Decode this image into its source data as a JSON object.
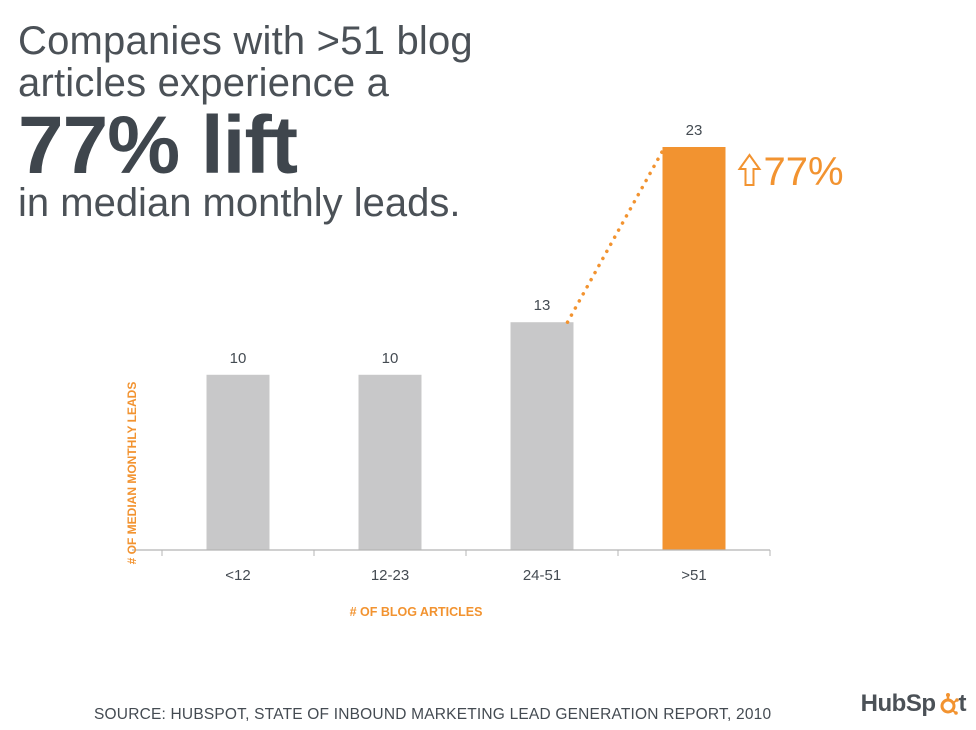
{
  "headline": {
    "line1": "Companies with >51 blog",
    "line2": "articles experience a",
    "big": "77% lift",
    "line4": "in median monthly leads."
  },
  "footer": {
    "source": "SOURCE: HUBSPOT, STATE OF INBOUND MARKETING LEAD GENERATION REPORT, 2010"
  },
  "logo": {
    "text": "HubSp",
    "text_end": "t"
  },
  "colors": {
    "gray_bar": "#c8c8c9",
    "accent": "#f29330",
    "text": "#444b52"
  },
  "chart_data": {
    "type": "bar",
    "categories": [
      "<12",
      "12-23",
      "24-51",
      ">51"
    ],
    "values": [
      10,
      10,
      13,
      23
    ],
    "data_labels": [
      "10",
      "10",
      "13",
      "23"
    ],
    "highlight_index": 3,
    "xlabel": "# OF BLOG ARTICLES",
    "ylabel": "# OF MEDIAN MONTHLY LEADS",
    "ylim": [
      0,
      23
    ],
    "grid": false,
    "annotation": {
      "text": "77%",
      "connects": [
        "24-51",
        ">51"
      ]
    }
  }
}
